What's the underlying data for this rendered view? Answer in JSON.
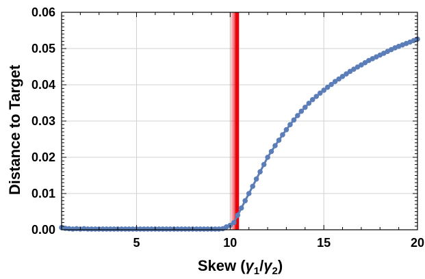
{
  "chart_data": {
    "type": "scatter",
    "title": "",
    "xlabel_main": "Skew (",
    "xlabel_g1": "γ",
    "xlabel_sub1": "1",
    "xlabel_slash": "/",
    "xlabel_g2": "γ",
    "xlabel_sub2": "2",
    "xlabel_close": ")",
    "ylabel": "Distance to Target",
    "xlim": [
      1,
      20
    ],
    "ylim": [
      0,
      0.06
    ],
    "x_ticks": [
      5,
      10,
      15,
      20
    ],
    "y_ticks": [
      0.0,
      0.01,
      0.02,
      0.03,
      0.04,
      0.05,
      0.06
    ],
    "x_tick_labels": [
      "5",
      "10",
      "15",
      "20"
    ],
    "y_tick_labels": [
      "0.00",
      "0.01",
      "0.02",
      "0.03",
      "0.04",
      "0.05",
      "0.06"
    ],
    "grid": true,
    "marker_color": "#5b7db8",
    "line_color": "#5b7db8",
    "threshold_line": {
      "x": 10.4,
      "color": "#e8000b"
    },
    "series": [
      {
        "x": [
          1.0,
          1.2,
          1.4,
          1.6,
          1.8,
          2.0,
          2.2,
          2.4,
          2.6,
          2.8,
          3.0,
          3.2,
          3.4,
          3.6,
          3.8,
          4.0,
          4.2,
          4.4,
          4.6,
          4.8,
          5.0,
          5.2,
          5.4,
          5.6,
          5.8,
          6.0,
          6.2,
          6.4,
          6.6,
          6.8,
          7.0,
          7.2,
          7.4,
          7.6,
          7.8,
          8.0,
          8.2,
          8.4,
          8.6,
          8.8,
          9.0,
          9.2,
          9.4,
          9.6,
          9.8,
          10.0,
          10.2,
          10.4,
          10.6,
          10.8,
          11.0,
          11.2,
          11.4,
          11.6,
          11.8,
          12.0,
          12.2,
          12.4,
          12.6,
          12.8,
          13.0,
          13.2,
          13.4,
          13.6,
          13.8,
          14.0,
          14.2,
          14.4,
          14.6,
          14.8,
          15.0,
          15.2,
          15.4,
          15.6,
          15.8,
          16.0,
          16.2,
          16.4,
          16.6,
          16.8,
          17.0,
          17.2,
          17.4,
          17.6,
          17.8,
          18.0,
          18.2,
          18.4,
          18.6,
          18.8,
          19.0,
          19.2,
          19.4,
          19.6,
          19.8,
          20.0
        ],
        "values": [
          0.0006,
          0.0004,
          0.0003,
          0.0002,
          0.0003,
          0.0002,
          0.0003,
          0.0002,
          0.0002,
          0.0002,
          0.0002,
          0.0002,
          0.0002,
          0.0002,
          0.0002,
          0.0002,
          0.0002,
          0.0002,
          0.0002,
          0.0002,
          0.0002,
          0.0002,
          0.0002,
          0.0002,
          0.0002,
          0.0002,
          0.0002,
          0.0002,
          0.0002,
          0.0002,
          0.0002,
          0.0002,
          0.0002,
          0.0002,
          0.0002,
          0.0002,
          0.0002,
          0.0002,
          0.0002,
          0.0002,
          0.0002,
          0.0002,
          0.0002,
          0.0003,
          0.0008,
          0.0012,
          0.002,
          0.004,
          0.006,
          0.008,
          0.01,
          0.012,
          0.014,
          0.016,
          0.018,
          0.02,
          0.0216,
          0.0232,
          0.0247,
          0.0262,
          0.0276,
          0.029,
          0.0303,
          0.0315,
          0.0327,
          0.0338,
          0.0349,
          0.0359,
          0.0368,
          0.0377,
          0.0385,
          0.0393,
          0.0401,
          0.0409,
          0.0416,
          0.0423,
          0.043,
          0.0437,
          0.0443,
          0.0449,
          0.0455,
          0.0461,
          0.0467,
          0.0472,
          0.0477,
          0.0482,
          0.0487,
          0.0492,
          0.0497,
          0.0502,
          0.0506,
          0.051,
          0.0514,
          0.0518,
          0.0522,
          0.0526
        ]
      }
    ]
  }
}
